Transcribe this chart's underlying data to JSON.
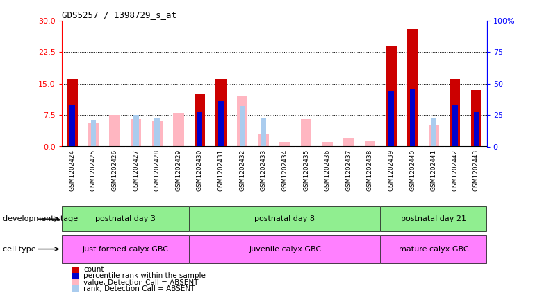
{
  "title": "GDS5257 / 1398729_s_at",
  "samples": [
    "GSM1202424",
    "GSM1202425",
    "GSM1202426",
    "GSM1202427",
    "GSM1202428",
    "GSM1202429",
    "GSM1202430",
    "GSM1202431",
    "GSM1202432",
    "GSM1202433",
    "GSM1202434",
    "GSM1202435",
    "GSM1202436",
    "GSM1202437",
    "GSM1202438",
    "GSM1202439",
    "GSM1202440",
    "GSM1202441",
    "GSM1202442",
    "GSM1202443"
  ],
  "count_values": [
    16.0,
    0,
    0,
    0,
    0,
    0,
    12.5,
    16.0,
    0,
    0,
    0,
    0,
    0,
    0,
    0,
    24.0,
    28.0,
    0,
    16.0,
    13.5
  ],
  "percentile_values": [
    33.0,
    0,
    0,
    0,
    0,
    0,
    27.0,
    36.0,
    0,
    0,
    0,
    0,
    0,
    0,
    0,
    44.0,
    46.0,
    0,
    33.0,
    27.0
  ],
  "absent_count_values": [
    0,
    5.5,
    7.5,
    6.5,
    6.0,
    8.0,
    0,
    0,
    12.0,
    3.0,
    1.0,
    6.5,
    1.0,
    2.0,
    1.2,
    0,
    0,
    5.0,
    0,
    0
  ],
  "absent_rank_values": [
    0,
    21.0,
    0,
    25.0,
    22.0,
    0,
    0,
    0,
    32.0,
    22.0,
    0,
    0,
    0,
    0,
    0,
    0,
    0,
    23.0,
    0,
    28.0
  ],
  "ylim_left": [
    0,
    30
  ],
  "ylim_right": [
    0,
    100
  ],
  "yticks_left": [
    0,
    7.5,
    15,
    22.5,
    30
  ],
  "yticks_right": [
    0,
    25,
    50,
    75,
    100
  ],
  "group_boundaries": [
    0,
    6,
    15,
    20
  ],
  "dev_stage_labels": [
    "postnatal day 3",
    "postnatal day 8",
    "postnatal day 21"
  ],
  "cell_type_labels": [
    "just formed calyx GBC",
    "juvenile calyx GBC",
    "mature calyx GBC"
  ],
  "dev_stage_label": "development stage",
  "cell_type_label": "cell type",
  "count_color": "#CC0000",
  "percentile_color": "#0000CC",
  "absent_count_color": "#FFB6C1",
  "absent_rank_color": "#AACCEE",
  "background_color": "#ffffff",
  "plot_bg_color": "#ffffff",
  "tick_bg_color": "#d3d3d3",
  "dev_color": "#90EE90",
  "cell_color": "#FF80FF"
}
